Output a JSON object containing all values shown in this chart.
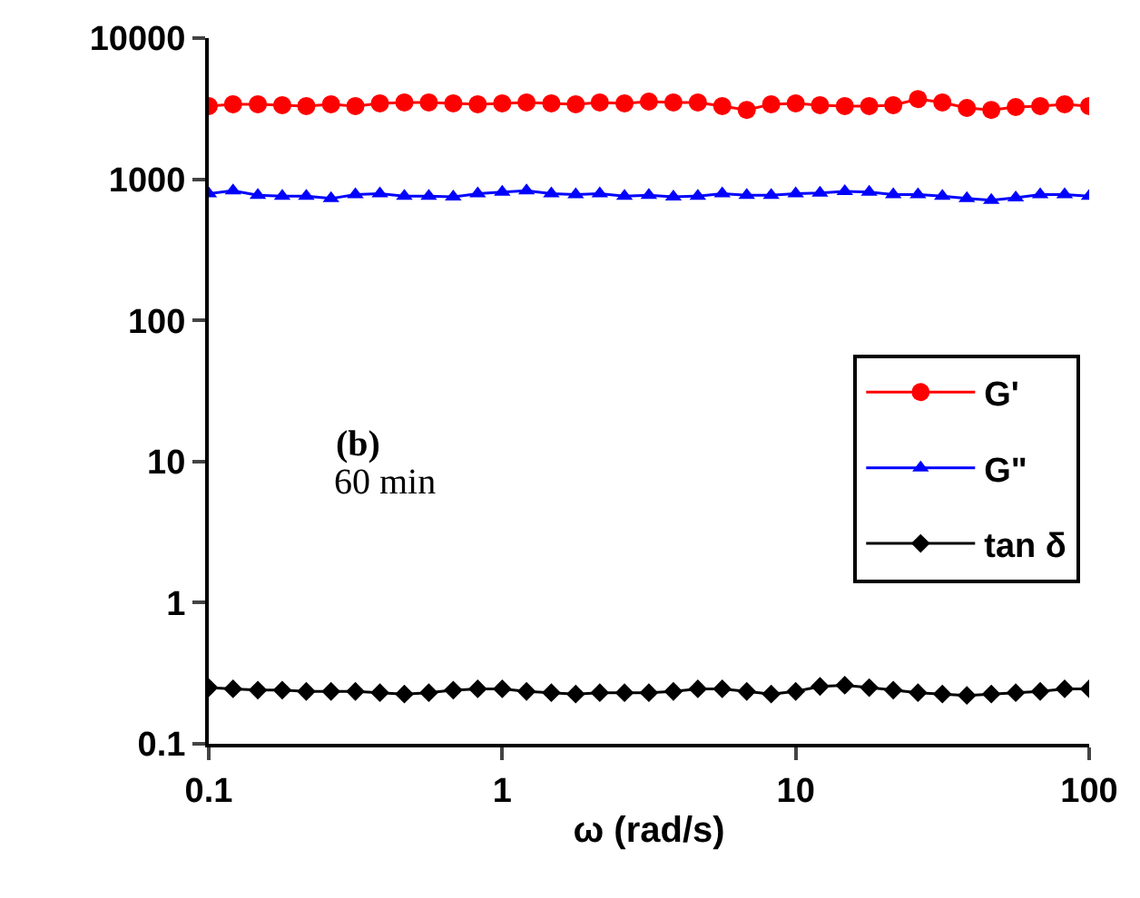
{
  "chart_data": {
    "type": "line",
    "xlabel": "ω (rad/s)",
    "log": "xy",
    "xlim": [
      0.1,
      100
    ],
    "ylim": [
      0.1,
      10000
    ],
    "xticks": [
      0.1,
      1,
      10,
      100
    ],
    "yticks": [
      0.1,
      1,
      10,
      100,
      1000,
      10000
    ],
    "legend": "right",
    "line_style": "solid",
    "x": [
      0.1,
      0.121,
      0.147,
      0.178,
      0.215,
      0.261,
      0.316,
      0.383,
      0.464,
      0.562,
      0.681,
      0.825,
      1,
      1.21,
      1.47,
      1.78,
      2.15,
      2.61,
      3.16,
      3.83,
      4.64,
      5.62,
      6.81,
      8.25,
      10,
      12.1,
      14.7,
      17.8,
      21.5,
      26.1,
      31.6,
      38.3,
      46.4,
      56.2,
      68.1,
      82.5,
      100
    ],
    "annotations": [
      "(b)",
      "60 min"
    ],
    "series": [
      {
        "name": "G'",
        "color": "#ff0000",
        "marker": "circle",
        "values": [
          3300,
          3400,
          3400,
          3350,
          3300,
          3400,
          3300,
          3450,
          3500,
          3500,
          3450,
          3400,
          3450,
          3500,
          3450,
          3400,
          3500,
          3450,
          3550,
          3500,
          3500,
          3300,
          3100,
          3400,
          3450,
          3350,
          3300,
          3300,
          3350,
          3700,
          3500,
          3200,
          3100,
          3250,
          3300,
          3400,
          3300
        ]
      },
      {
        "name": "G\"",
        "color": "#0000ff",
        "marker": "triangle",
        "values": [
          790,
          830,
          770,
          760,
          760,
          730,
          780,
          790,
          760,
          760,
          750,
          790,
          810,
          830,
          790,
          780,
          790,
          760,
          770,
          750,
          760,
          790,
          770,
          770,
          790,
          800,
          820,
          810,
          780,
          780,
          760,
          730,
          710,
          740,
          780,
          780,
          760
        ]
      },
      {
        "name": "tan δ",
        "color": "#000000",
        "marker": "diamond",
        "values": [
          0.25,
          0.245,
          0.24,
          0.24,
          0.235,
          0.235,
          0.235,
          0.23,
          0.225,
          0.23,
          0.24,
          0.245,
          0.245,
          0.235,
          0.23,
          0.225,
          0.23,
          0.23,
          0.23,
          0.235,
          0.245,
          0.245,
          0.235,
          0.225,
          0.235,
          0.255,
          0.26,
          0.25,
          0.24,
          0.23,
          0.225,
          0.22,
          0.225,
          0.23,
          0.235,
          0.245,
          0.245
        ]
      }
    ]
  }
}
